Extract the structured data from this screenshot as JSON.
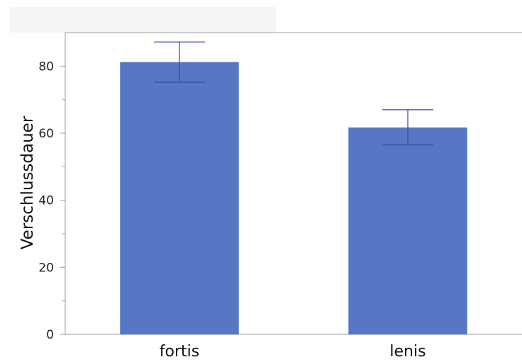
{
  "chart_data": {
    "type": "bar",
    "categories": [
      "fortis",
      "lenis"
    ],
    "values": [
      81.2,
      61.7
    ],
    "error_bars": {
      "upper": [
        87.2,
        67.0
      ],
      "lower": [
        75.2,
        56.5
      ]
    },
    "title": "",
    "xlabel": "",
    "ylabel": "Verschlussdauer",
    "ylim": [
      0,
      90
    ],
    "yticks": [
      0,
      20,
      40,
      60,
      80
    ],
    "grid": false,
    "legend": "none"
  },
  "colors": {
    "bar": "#5577c4",
    "error_bar": "#2b4aa0",
    "axis": "#9a9a9a",
    "header_band": "#f5f5f5"
  }
}
